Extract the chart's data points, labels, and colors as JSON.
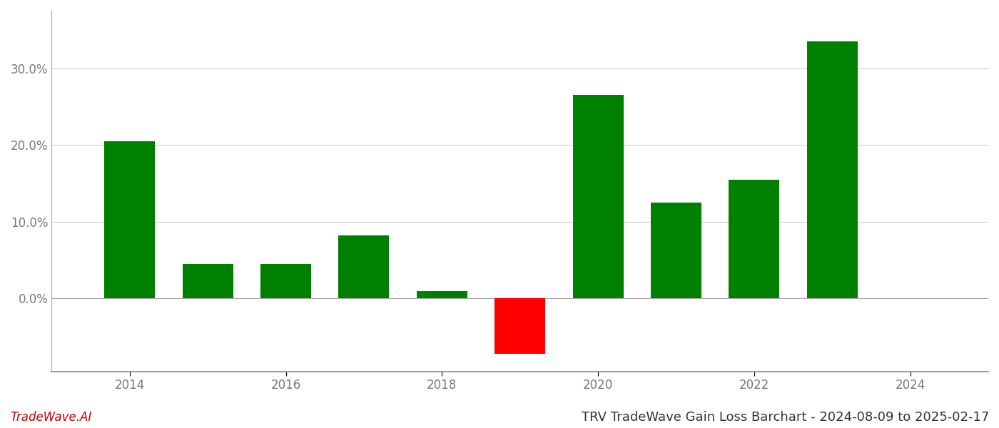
{
  "years": [
    2014,
    2015,
    2016,
    2017,
    2018,
    2019,
    2020,
    2021,
    2022,
    2023
  ],
  "values": [
    0.205,
    0.045,
    0.045,
    0.082,
    0.01,
    -0.072,
    0.265,
    0.125,
    0.155,
    0.335
  ],
  "colors_positive": "#008000",
  "colors_negative": "#ff0000",
  "title": "TRV TradeWave Gain Loss Barchart - 2024-08-09 to 2025-02-17",
  "watermark": "TradeWave.AI",
  "ylim_min": -0.095,
  "ylim_max": 0.375,
  "yticks": [
    0.0,
    0.1,
    0.2,
    0.3
  ],
  "ytick_labels": [
    "0.0%",
    "10.0%",
    "20.0%",
    "30.0%"
  ],
  "xticks": [
    2014,
    2016,
    2018,
    2020,
    2022,
    2024
  ],
  "xtick_labels": [
    "2014",
    "2016",
    "2018",
    "2020",
    "2022",
    "2024"
  ],
  "background_color": "#ffffff",
  "grid_color": "#cccccc",
  "bar_width": 0.65,
  "title_fontsize": 13,
  "watermark_fontsize": 12,
  "tick_fontsize": 12,
  "xlim_min": 2013.0,
  "xlim_max": 2025.0
}
